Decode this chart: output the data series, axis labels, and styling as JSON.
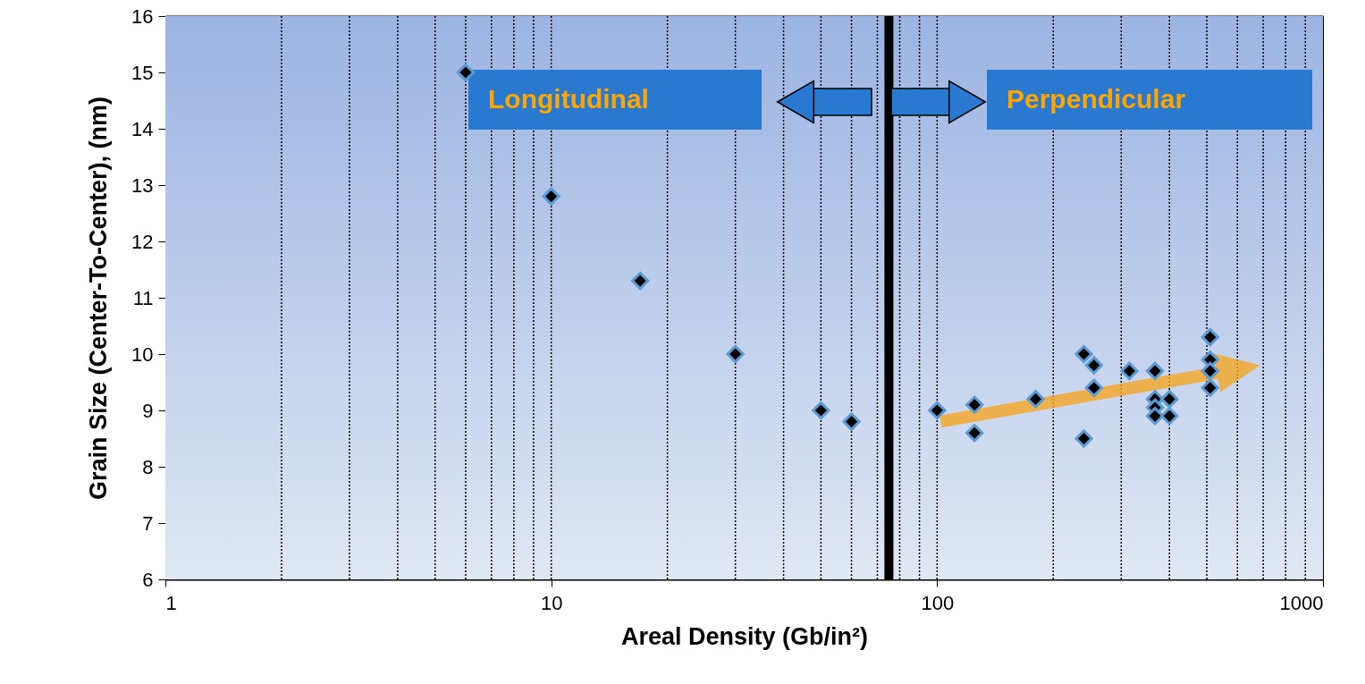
{
  "chart_data": {
    "type": "scatter",
    "xlabel": "Areal Density (Gb/in²)",
    "ylabel": "Grain Size (Center-To-Center), (nm)",
    "series": [
      {
        "color": "#000000",
        "x": [
          6,
          10,
          17,
          30,
          50,
          60,
          100,
          125,
          125,
          180,
          240,
          255,
          255,
          240,
          315,
          367,
          367,
          367,
          367,
          400,
          400,
          510,
          510,
          510,
          510
        ],
        "values": [
          15,
          12.8,
          11.3,
          10,
          9,
          8.8,
          9,
          9.1,
          8.6,
          9.2,
          10,
          9.8,
          9.4,
          8.5,
          9.7,
          9.7,
          9.2,
          9.05,
          8.9,
          9.2,
          8.9,
          10.3,
          9.9,
          9.7,
          9.4
        ]
      }
    ],
    "log": "x",
    "xlim": [
      1,
      1000
    ],
    "xticks": [
      1,
      10,
      100,
      1000
    ],
    "ylim": [
      6,
      16
    ],
    "yticks": [
      6,
      7,
      8,
      9,
      10,
      11,
      12,
      13,
      14,
      15,
      16
    ],
    "grid": true,
    "marker": "diamond",
    "legend": false,
    "ref_lines": [
      {
        "axis": "x",
        "value": 75,
        "color": "#000000",
        "line_style": "solid"
      }
    ],
    "annotations": [
      "Longitudinal",
      "Perpendicular"
    ]
  }
}
